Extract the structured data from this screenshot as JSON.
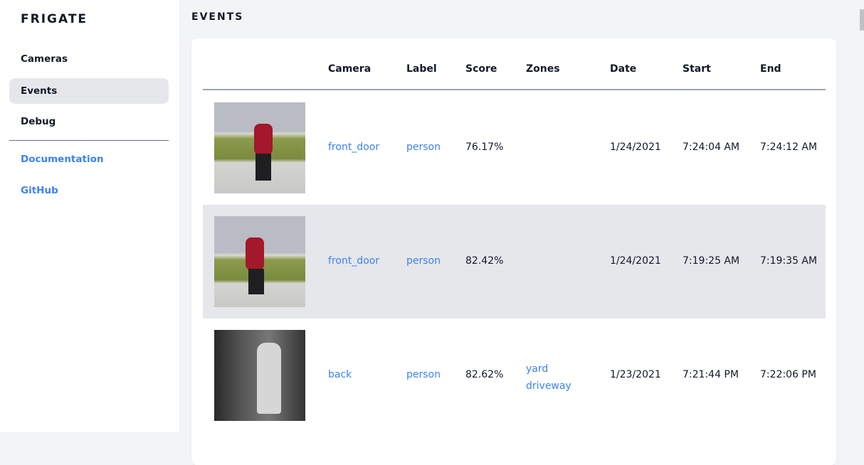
{
  "sidebar": {
    "brand": "FRIGATE",
    "items": [
      {
        "label": "Cameras"
      },
      {
        "label": "Events",
        "active": true
      },
      {
        "label": "Debug"
      }
    ],
    "links": [
      {
        "label": "Documentation"
      },
      {
        "label": "GitHub"
      }
    ]
  },
  "page": {
    "title": "EVENTS"
  },
  "table": {
    "columns": [
      "Camera",
      "Label",
      "Score",
      "Zones",
      "Date",
      "Start",
      "End"
    ],
    "rows": [
      {
        "camera": "front_door",
        "label": "person",
        "score": "76.17%",
        "zones": [
          "",
          ""
        ],
        "date": "1/24/2021",
        "start": "7:24:04 AM",
        "end": "7:24:12 AM"
      },
      {
        "camera": "front_door",
        "label": "person",
        "score": "82.42%",
        "zones": [
          "",
          ""
        ],
        "date": "1/24/2021",
        "start": "7:19:25 AM",
        "end": "7:19:35 AM"
      },
      {
        "camera": "back",
        "label": "person",
        "score": "82.62%",
        "zones": [
          "yard",
          "driveway"
        ],
        "date": "1/23/2021",
        "start": "7:21:44 PM",
        "end": "7:22:06 PM"
      }
    ]
  },
  "colors": {
    "accent": "#3b82f6",
    "active_bg": "#e5e7eb"
  }
}
